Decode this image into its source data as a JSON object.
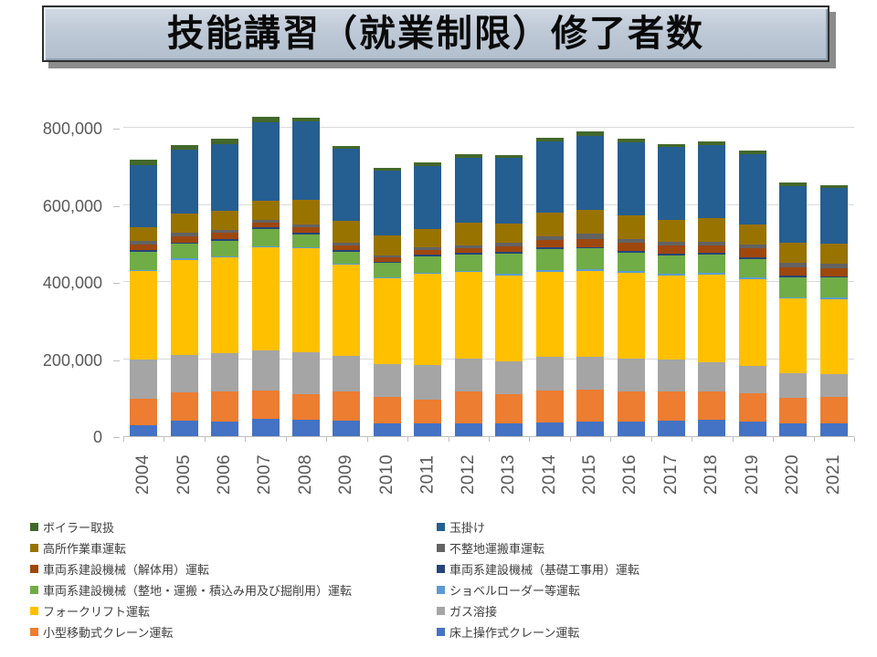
{
  "title": "技能講習（就業制限）修了者数",
  "colors": {
    "axis_text": "#595959",
    "legend_text": "#404040",
    "gridline": "#D9D9D9",
    "axis_line": "#BFBFBF",
    "title_box_fill": "#BEC9D6",
    "title_box_border": "#2F2F2F",
    "title_box_shadow": "#8C8C8C"
  },
  "chart_data": {
    "type": "bar",
    "stacked": true,
    "title": "技能講習（就業制限）修了者数",
    "xlabel": "",
    "ylabel": "",
    "ylim": [
      0,
      800000
    ],
    "grid": true,
    "legend_position": "bottom-two-columns",
    "categories": [
      "2004",
      "2005",
      "2006",
      "2007",
      "2008",
      "2009",
      "2010",
      "2011",
      "2012",
      "2013",
      "2014",
      "2015",
      "2016",
      "2017",
      "2018",
      "2019",
      "2020",
      "2021"
    ],
    "yticks": [
      {
        "label": "0",
        "value": 0
      },
      {
        "label": "200,000",
        "value": 200000
      },
      {
        "label": "400,000",
        "value": 400000
      },
      {
        "label": "600,000",
        "value": 600000
      },
      {
        "label": "800,000",
        "value": 800000
      }
    ],
    "series": [
      {
        "name": "床上操作式クレーン運転",
        "color": "#4472C4",
        "values": [
          29000,
          40000,
          38000,
          45000,
          42000,
          41000,
          34000,
          33000,
          34000,
          33000,
          36000,
          38000,
          38000,
          40000,
          42000,
          38000,
          33000,
          34000
        ]
      },
      {
        "name": "小型移動式クレーン運転",
        "color": "#ED7D31",
        "values": [
          69000,
          73000,
          77000,
          73000,
          68000,
          75000,
          67000,
          62000,
          81000,
          77000,
          82000,
          83000,
          79000,
          75000,
          73000,
          74000,
          67000,
          68000
        ]
      },
      {
        "name": "ガス溶接",
        "color": "#A5A5A5",
        "values": [
          102000,
          97000,
          100000,
          104000,
          107000,
          93000,
          87000,
          89000,
          86000,
          85000,
          87000,
          86000,
          85000,
          83000,
          76000,
          71000,
          64000,
          60000
        ]
      },
      {
        "name": "フォークリフト運転",
        "color": "#FFC000",
        "values": [
          228000,
          248000,
          248000,
          267000,
          270000,
          235000,
          221000,
          237000,
          225000,
          222000,
          222000,
          222000,
          221000,
          218000,
          227000,
          224000,
          194000,
          194000
        ]
      },
      {
        "name": "ショベルローダー等運転",
        "color": "#5B9BD5",
        "values": [
          3000,
          4000,
          4000,
          3000,
          4000,
          3000,
          3000,
          3000,
          3000,
          5000,
          5000,
          4000,
          5000,
          5000,
          5000,
          4000,
          3000,
          3000
        ]
      },
      {
        "name": "車両系建設機械（整地・運搬・積込み用及び掘削用）運転",
        "color": "#70AD47",
        "values": [
          48000,
          38000,
          40000,
          46000,
          32000,
          32000,
          37000,
          43000,
          42000,
          52000,
          53000,
          54000,
          48000,
          48000,
          49000,
          49000,
          52000,
          52000
        ]
      },
      {
        "name": "車両系建設機械（基礎工事用）運転",
        "color": "#264478",
        "values": [
          4000,
          3000,
          4000,
          4000,
          4000,
          5000,
          4000,
          4000,
          5000,
          5000,
          5000,
          4000,
          4000,
          5000,
          5000,
          4000,
          4000,
          4000
        ]
      },
      {
        "name": "車両系建設機械（解体用）運転",
        "color": "#9E480E",
        "values": [
          14000,
          16000,
          17000,
          12000,
          14000,
          11000,
          10000,
          13000,
          12000,
          14000,
          18000,
          21000,
          21000,
          20000,
          19000,
          24000,
          22000,
          21000
        ]
      },
      {
        "name": "不整地運搬車運転",
        "color": "#636363",
        "values": [
          10000,
          8000,
          8000,
          6000,
          9000,
          8000,
          6000,
          6000,
          7000,
          8000,
          11000,
          13000,
          10000,
          10000,
          8000,
          10000,
          11000,
          12000
        ]
      },
      {
        "name": "高所作業車運転",
        "color": "#997300",
        "values": [
          36000,
          50000,
          48000,
          50000,
          63000,
          55000,
          52000,
          47000,
          59000,
          51000,
          60000,
          61000,
          63000,
          58000,
          62000,
          52000,
          52000,
          52000
        ]
      },
      {
        "name": "玉掛け",
        "color": "#255E91",
        "values": [
          160000,
          166000,
          173000,
          205000,
          204000,
          188000,
          167000,
          163000,
          168000,
          169000,
          186000,
          194000,
          188000,
          188000,
          189000,
          182000,
          147000,
          144000
        ]
      },
      {
        "name": "ボイラー取扱",
        "color": "#43682B",
        "values": [
          15000,
          12000,
          14000,
          13000,
          10000,
          8000,
          9000,
          11000,
          10000,
          8000,
          10000,
          10000,
          10000,
          8000,
          10000,
          8000,
          10000,
          8000
        ]
      }
    ],
    "legend_order": [
      "ボイラー取扱",
      "玉掛け",
      "高所作業車運転",
      "不整地運搬車運転",
      "車両系建設機械（解体用）運転",
      "車両系建設機械（基礎工事用）運転",
      "車両系建設機械（整地・運搬・積込み用及び掘削用）運転",
      "ショベルローダー等運転",
      "フォークリフト運転",
      "ガス溶接",
      "小型移動式クレーン運転",
      "床上操作式クレーン運転"
    ]
  }
}
